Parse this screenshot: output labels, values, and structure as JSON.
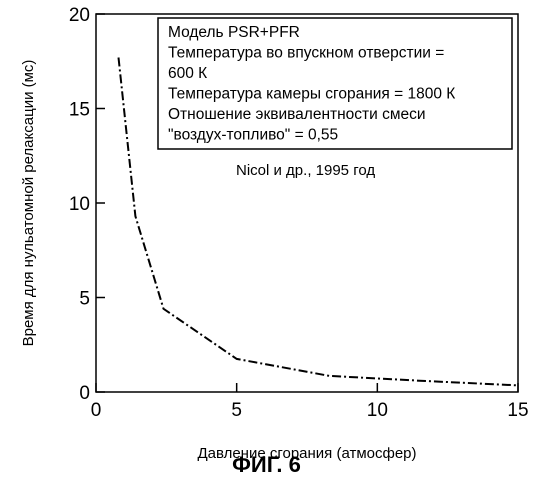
{
  "chart_data": {
    "type": "line",
    "title": "",
    "xlabel": "Давление сгорания (атмосфер)",
    "ylabel": "Время для нульатомной релаксации (мс)",
    "xlim": [
      0,
      15
    ],
    "ylim": [
      0,
      20
    ],
    "x_ticks": [
      0,
      5,
      10,
      15
    ],
    "y_ticks": [
      0,
      5,
      10,
      15,
      20
    ],
    "x_tick_labels": [
      "0",
      "5",
      "10",
      "15"
    ],
    "y_tick_labels": [
      "0",
      "5",
      "10",
      "15",
      "20"
    ],
    "grid": false,
    "series": [
      {
        "line_style": "dash-dot",
        "color": "#000000",
        "x": [
          0.8,
          1.4,
          2.4,
          5.0,
          8.3,
          11.5,
          15.0
        ],
        "y": [
          17.7,
          9.3,
          4.4,
          1.75,
          0.85,
          0.6,
          0.35
        ]
      }
    ],
    "legend_box": {
      "placement": "top-right",
      "lines": [
        "Модель PSR+PFR",
        "Температура во впускном отверстии =",
        "600 К",
        "Температура камеры сгорания = 1800 К",
        "Отношение эквивалентности смеси",
        "\"воздух-топливо\" = 0,55"
      ]
    },
    "annotation": "Nicol и др., 1995 год"
  },
  "caption": "ФИГ. 6"
}
